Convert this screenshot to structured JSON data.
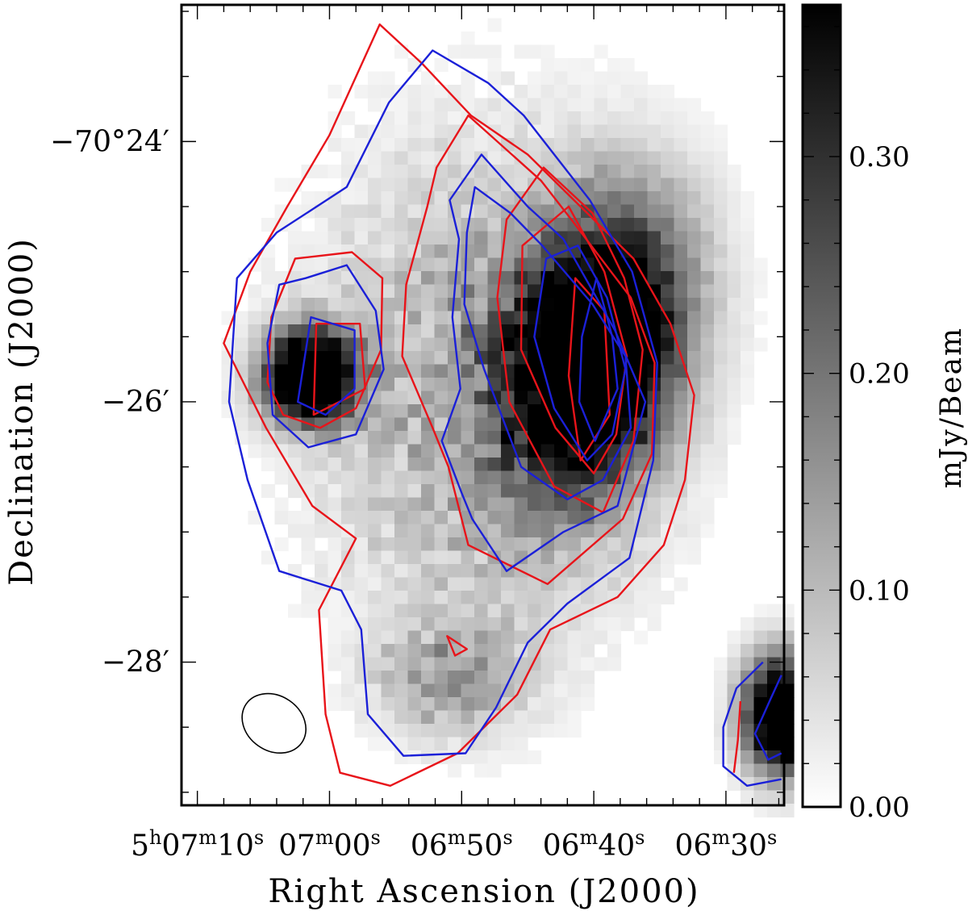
{
  "chart_data": {
    "type": "heatmap",
    "xlabel": "Right Ascension (J2000)",
    "ylabel": "Declination (J2000)",
    "colorbar": {
      "label": "mJy/Beam",
      "range": [
        0.0,
        0.37
      ],
      "ticks": [
        {
          "value": 0.0,
          "label": "0.00"
        },
        {
          "value": 0.1,
          "label": "0.10"
        },
        {
          "value": 0.2,
          "label": "0.20"
        },
        {
          "value": 0.3,
          "label": "0.30"
        }
      ],
      "colormap": "white-to-black"
    },
    "x_ticks": [
      {
        "ra_s": 70,
        "label_parts": [
          "5",
          "h",
          "07",
          "m",
          "10",
          "s"
        ]
      },
      {
        "ra_s": 60,
        "label_parts": [
          "07",
          "m",
          "00",
          "s"
        ]
      },
      {
        "ra_s": 50,
        "label_parts": [
          "06",
          "m",
          "50",
          "s"
        ]
      },
      {
        "ra_s": 40,
        "label_parts": [
          "06",
          "m",
          "40",
          "s"
        ]
      },
      {
        "ra_s": 30,
        "label_parts": [
          "06",
          "m",
          "30",
          "s"
        ]
      }
    ],
    "y_ticks": [
      {
        "dec_arcmin": -24,
        "label_parts": [
          "−70°24′"
        ]
      },
      {
        "dec_arcmin": -26,
        "label_parts": [
          "−26′"
        ]
      },
      {
        "dec_arcmin": -28,
        "label_parts": [
          "−28′"
        ]
      }
    ],
    "ra_range_s": [
      71.2,
      25.6
    ],
    "dec_range_arcmin": [
      -22.95,
      -29.1
    ],
    "grid": false,
    "beam": {
      "ra_s": 64.2,
      "dec_arcmin": -28.47,
      "note": "beam ellipse (synthesized beam)"
    },
    "sources": [
      {
        "name": "compact eastern source",
        "ra_s": 61.5,
        "dec_arcmin": -25.8,
        "peak_mJy": 0.37
      },
      {
        "name": "extended central source",
        "ra_s": 39.7,
        "dec_arcmin": -25.6,
        "peak_mJy": 0.37
      },
      {
        "name": "south-western edge source",
        "ra_s": 25.8,
        "dec_arcmin": -28.4,
        "peak_mJy": 0.37
      }
    ],
    "contour_colors": {
      "red": "#e8141a",
      "blue": "#1b20d8"
    },
    "contours": [
      {
        "color": "red",
        "closed": true,
        "points": [
          [
            56.2,
            -23.1
          ],
          [
            53.0,
            -23.4
          ],
          [
            49.3,
            -23.8
          ],
          [
            45.0,
            -24.1
          ],
          [
            41.5,
            -24.45
          ],
          [
            37.0,
            -24.9
          ],
          [
            34.2,
            -25.4
          ],
          [
            32.4,
            -25.95
          ],
          [
            33.1,
            -26.6
          ],
          [
            34.7,
            -27.1
          ],
          [
            38.2,
            -27.5
          ],
          [
            43.3,
            -27.75
          ],
          [
            45.8,
            -28.25
          ],
          [
            50.3,
            -28.7
          ],
          [
            55.4,
            -28.95
          ],
          [
            59.2,
            -28.85
          ],
          [
            60.3,
            -28.4
          ],
          [
            60.8,
            -27.6
          ],
          [
            58.0,
            -27.05
          ],
          [
            61.3,
            -26.8
          ],
          [
            64.8,
            -26.2
          ],
          [
            68.0,
            -25.55
          ],
          [
            66.0,
            -25.0
          ],
          [
            63.2,
            -24.5
          ],
          [
            60.0,
            -23.95
          ]
        ]
      },
      {
        "color": "red",
        "closed": true,
        "points": [
          [
            49.5,
            -23.8
          ],
          [
            44.0,
            -24.3
          ],
          [
            41.7,
            -24.6
          ],
          [
            37.2,
            -25.2
          ],
          [
            35.4,
            -25.7
          ],
          [
            35.6,
            -26.4
          ],
          [
            37.8,
            -26.9
          ],
          [
            43.5,
            -27.4
          ],
          [
            49.5,
            -27.1
          ],
          [
            51.0,
            -26.5
          ],
          [
            52.2,
            -26.2
          ],
          [
            54.5,
            -25.65
          ],
          [
            54.2,
            -25.1
          ],
          [
            52.6,
            -24.5
          ],
          [
            51.9,
            -24.2
          ]
        ]
      },
      {
        "color": "red",
        "closed": true,
        "points": [
          [
            62.6,
            -24.9
          ],
          [
            58.3,
            -24.85
          ],
          [
            56.0,
            -25.05
          ],
          [
            56.1,
            -25.6
          ],
          [
            58.0,
            -26.05
          ],
          [
            60.7,
            -26.2
          ],
          [
            63.5,
            -26.1
          ],
          [
            64.7,
            -25.85
          ],
          [
            64.4,
            -25.35
          ]
        ]
      },
      {
        "color": "red",
        "closed": true,
        "points": [
          [
            61.0,
            -25.4
          ],
          [
            57.7,
            -25.4
          ],
          [
            57.3,
            -25.9
          ],
          [
            61.2,
            -26.1
          ]
        ]
      },
      {
        "color": "red",
        "closed": true,
        "points": [
          [
            43.8,
            -24.2
          ],
          [
            40.1,
            -24.55
          ],
          [
            37.7,
            -25.05
          ],
          [
            36.3,
            -25.6
          ],
          [
            37.0,
            -26.3
          ],
          [
            39.3,
            -26.85
          ],
          [
            43.0,
            -26.65
          ],
          [
            46.4,
            -26.0
          ],
          [
            47.3,
            -25.2
          ],
          [
            46.6,
            -24.6
          ]
        ]
      },
      {
        "color": "red",
        "closed": true,
        "points": [
          [
            41.9,
            -24.5
          ],
          [
            39.2,
            -25.0
          ],
          [
            37.5,
            -25.65
          ],
          [
            38.3,
            -26.25
          ],
          [
            40.0,
            -26.55
          ],
          [
            42.9,
            -26.2
          ],
          [
            45.5,
            -25.6
          ],
          [
            45.4,
            -24.8
          ]
        ]
      },
      {
        "color": "red",
        "closed": true,
        "points": [
          [
            41.4,
            -25.05
          ],
          [
            39.2,
            -25.3
          ],
          [
            38.8,
            -26.1
          ],
          [
            41.0,
            -26.45
          ],
          [
            41.9,
            -25.8
          ]
        ]
      },
      {
        "color": "red",
        "closed": true,
        "points": [
          [
            51.1,
            -27.8
          ],
          [
            50.5,
            -27.95
          ],
          [
            49.6,
            -27.9
          ]
        ]
      },
      {
        "color": "blue",
        "closed": true,
        "points": [
          [
            52.2,
            -23.3
          ],
          [
            48.0,
            -23.55
          ],
          [
            45.3,
            -23.8
          ],
          [
            40.3,
            -24.45
          ],
          [
            37.1,
            -25.0
          ],
          [
            35.2,
            -25.7
          ],
          [
            35.5,
            -26.45
          ],
          [
            37.3,
            -27.2
          ],
          [
            42.0,
            -27.55
          ],
          [
            45.0,
            -27.85
          ],
          [
            47.4,
            -28.35
          ],
          [
            49.7,
            -28.7
          ],
          [
            54.4,
            -28.72
          ],
          [
            57.1,
            -28.4
          ],
          [
            57.6,
            -27.75
          ],
          [
            59.1,
            -27.45
          ],
          [
            63.8,
            -27.3
          ],
          [
            66.2,
            -26.6
          ],
          [
            67.6,
            -26.0
          ],
          [
            67.0,
            -25.05
          ],
          [
            64.0,
            -24.7
          ],
          [
            58.7,
            -24.35
          ],
          [
            55.5,
            -23.7
          ]
        ]
      },
      {
        "color": "blue",
        "closed": true,
        "points": [
          [
            48.5,
            -24.1
          ],
          [
            45.0,
            -24.5
          ],
          [
            42.3,
            -24.75
          ],
          [
            38.4,
            -25.45
          ],
          [
            36.1,
            -26.0
          ],
          [
            38.2,
            -26.8
          ],
          [
            42.3,
            -27.0
          ],
          [
            46.6,
            -27.3
          ],
          [
            49.2,
            -26.9
          ],
          [
            50.0,
            -26.7
          ],
          [
            51.5,
            -26.3
          ],
          [
            50.1,
            -25.9
          ],
          [
            50.7,
            -25.35
          ],
          [
            50.2,
            -24.75
          ],
          [
            50.9,
            -24.45
          ]
        ]
      },
      {
        "color": "blue",
        "closed": true,
        "points": [
          [
            61.8,
            -25.05
          ],
          [
            58.7,
            -24.95
          ],
          [
            56.5,
            -25.3
          ],
          [
            55.9,
            -25.75
          ],
          [
            58.0,
            -26.25
          ],
          [
            61.6,
            -26.35
          ],
          [
            64.3,
            -26.1
          ],
          [
            64.7,
            -25.55
          ],
          [
            63.8,
            -25.1
          ]
        ]
      },
      {
        "color": "blue",
        "closed": true,
        "points": [
          [
            61.4,
            -25.35
          ],
          [
            58.1,
            -25.45
          ],
          [
            58.1,
            -25.9
          ],
          [
            60.3,
            -26.1
          ],
          [
            62.4,
            -26.0
          ]
        ]
      },
      {
        "color": "blue",
        "closed": true,
        "points": [
          [
            49.0,
            -24.35
          ],
          [
            46.3,
            -24.55
          ],
          [
            43.9,
            -24.8
          ],
          [
            40.1,
            -25.25
          ],
          [
            37.6,
            -25.65
          ],
          [
            37.2,
            -26.2
          ],
          [
            39.3,
            -26.6
          ],
          [
            42.0,
            -26.75
          ],
          [
            45.5,
            -26.5
          ],
          [
            48.3,
            -25.75
          ],
          [
            49.8,
            -25.25
          ],
          [
            49.6,
            -24.7
          ]
        ]
      },
      {
        "color": "blue",
        "closed": true,
        "points": [
          [
            41.2,
            -24.8
          ],
          [
            39.0,
            -25.2
          ],
          [
            37.6,
            -25.75
          ],
          [
            38.6,
            -26.25
          ],
          [
            40.5,
            -26.45
          ],
          [
            43.0,
            -26.05
          ],
          [
            44.5,
            -25.5
          ],
          [
            43.6,
            -24.9
          ]
        ]
      },
      {
        "color": "blue",
        "closed": true,
        "points": [
          [
            39.8,
            -25.05
          ],
          [
            38.6,
            -25.5
          ],
          [
            38.2,
            -25.9
          ],
          [
            39.9,
            -26.3
          ],
          [
            41.1,
            -26.0
          ],
          [
            40.9,
            -25.5
          ]
        ]
      },
      {
        "color": "blue",
        "closed": false,
        "points": [
          [
            27.2,
            -28.0
          ],
          [
            29.2,
            -28.2
          ],
          [
            30.2,
            -28.5
          ],
          [
            30.2,
            -28.8
          ],
          [
            28.4,
            -28.95
          ],
          [
            25.8,
            -28.9
          ]
        ]
      },
      {
        "color": "blue",
        "closed": false,
        "points": [
          [
            25.8,
            -28.1
          ],
          [
            26.7,
            -28.3
          ],
          [
            27.8,
            -28.55
          ],
          [
            26.8,
            -28.75
          ],
          [
            25.8,
            -28.7
          ]
        ]
      },
      {
        "color": "red",
        "closed": false,
        "points": [
          [
            28.9,
            -28.3
          ],
          [
            29.1,
            -28.6
          ],
          [
            29.4,
            -28.85
          ]
        ]
      }
    ]
  }
}
